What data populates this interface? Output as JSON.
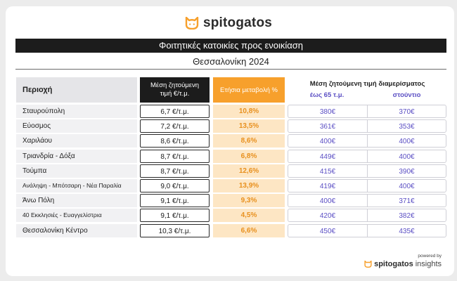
{
  "brand": {
    "name": "spitogatos",
    "accent": "#f7a02c",
    "icon": "cat-head-icon"
  },
  "title": "Φοιτητικές κατοικίες προς ενοικίαση",
  "subtitle": "Θεσσαλονίκη 2024",
  "headers": {
    "region": "Περιοχή",
    "price": "Μέση ζητούμενη τιμή €/τ.μ.",
    "change": "Ετήσια μεταβολή %",
    "apartment": "Μέση ζητούμενη τιμή διαμερίσματος",
    "sub1": "έως 65 τ.μ.",
    "sub2": "στούντιο"
  },
  "rows": [
    {
      "region": "Σταυρούπολη",
      "price": "6,7 €/τ.μ.",
      "change": "10,8%",
      "a1": "380€",
      "a2": "370€"
    },
    {
      "region": "Εύοσμος",
      "price": "7,2 €/τ.μ.",
      "change": "13,5%",
      "a1": "361€",
      "a2": "353€"
    },
    {
      "region": "Χαριλάου",
      "price": "8,6 €/τ.μ.",
      "change": "8,6%",
      "a1": "400€",
      "a2": "400€"
    },
    {
      "region": "Τριανδρία - Δόξα",
      "price": "8,7 €/τ.μ.",
      "change": "6,8%",
      "a1": "449€",
      "a2": "400€"
    },
    {
      "region": "Τούμπα",
      "price": "8,7 €/τ.μ.",
      "change": "12,6%",
      "a1": "415€",
      "a2": "390€"
    },
    {
      "region": "Ανάληψη - Μπότσαρη - Νέα Παραλία",
      "price": "9,0 €/τ.μ.",
      "change": "13,9%",
      "a1": "419€",
      "a2": "400€"
    },
    {
      "region": "Άνω Πόλη",
      "price": "9,1 €/τ.μ.",
      "change": "9,3%",
      "a1": "400€",
      "a2": "371€"
    },
    {
      "region": "40 Εκκλησιές - Ευαγγελίστρια",
      "price": "9,1 €/τ.μ.",
      "change": "4,5%",
      "a1": "420€",
      "a2": "382€"
    },
    {
      "region": "Θεσσαλονίκη Κέντρο",
      "price": "10,3 €/τ.μ.",
      "change": "6,6%",
      "a1": "450€",
      "a2": "435€"
    }
  ],
  "footer": {
    "powered": "powered by",
    "brand": "spitogatos",
    "suffix": "insights"
  },
  "chart_data": {
    "type": "table",
    "title": "Φοιτητικές κατοικίες προς ενοικίαση",
    "subtitle": "Θεσσαλονίκη 2024",
    "columns": [
      "Περιοχή",
      "Μέση ζητούμενη τιμή €/τ.μ.",
      "Ετήσια μεταβολή %",
      "έως 65 τ.μ.",
      "στούντιο"
    ],
    "rows": [
      [
        "Σταυρούπολη",
        6.7,
        10.8,
        380,
        370
      ],
      [
        "Εύοσμος",
        7.2,
        13.5,
        361,
        353
      ],
      [
        "Χαριλάου",
        8.6,
        8.6,
        400,
        400
      ],
      [
        "Τριανδρία - Δόξα",
        8.7,
        6.8,
        449,
        400
      ],
      [
        "Τούμπα",
        8.7,
        12.6,
        415,
        390
      ],
      [
        "Ανάληψη - Μπότσαρη - Νέα Παραλία",
        9.0,
        13.9,
        419,
        400
      ],
      [
        "Άνω Πόλη",
        9.1,
        9.3,
        400,
        371
      ],
      [
        "40 Εκκλησιές - Ευαγγελίστρια",
        9.1,
        4.5,
        420,
        382
      ],
      [
        "Θεσσαλονίκη Κέντρο",
        10.3,
        6.6,
        450,
        435
      ]
    ]
  }
}
